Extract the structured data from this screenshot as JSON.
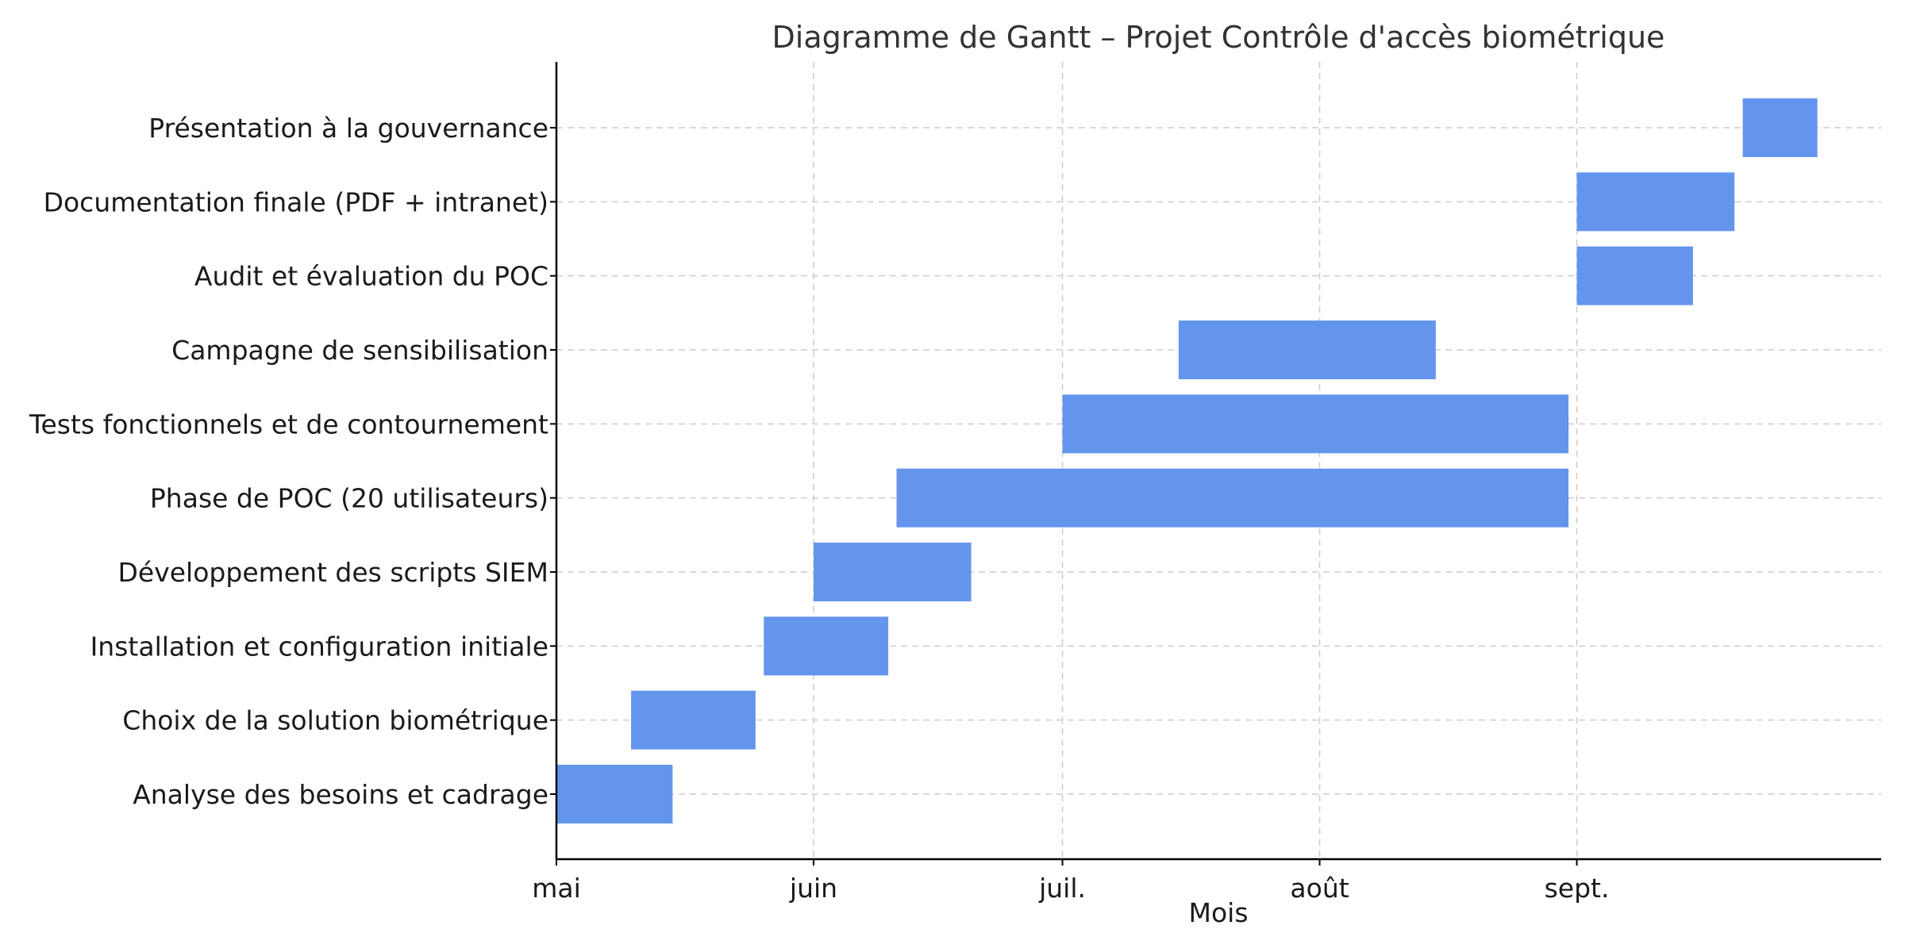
{
  "chart_data": {
    "type": "bar",
    "orientation": "horizontal-gantt",
    "title": "Diagramme de Gantt – Projet Contrôle d'accès biométrique",
    "xlabel": "Mois",
    "ylabel": "",
    "grid": true,
    "bar_color": "#6495ED",
    "xticks": [
      {
        "label": "mai",
        "date": "2024-05-01"
      },
      {
        "label": "juin",
        "date": "2024-06-01"
      },
      {
        "label": "juil.",
        "date": "2024-07-01"
      },
      {
        "label": "août",
        "date": "2024-08-01"
      },
      {
        "label": "sept.",
        "date": "2024-09-01"
      }
    ],
    "xlim": [
      "2024-05-01",
      "2024-09-30"
    ],
    "tasks": [
      {
        "name": "Analyse des besoins et cadrage",
        "start": "2024-05-01",
        "end": "2024-05-15"
      },
      {
        "name": "Choix de la solution biométrique",
        "start": "2024-05-10",
        "end": "2024-05-25"
      },
      {
        "name": "Installation et configuration initiale",
        "start": "2024-05-26",
        "end": "2024-06-10"
      },
      {
        "name": "Développement des scripts SIEM",
        "start": "2024-06-01",
        "end": "2024-06-20"
      },
      {
        "name": "Phase de POC (20 utilisateurs)",
        "start": "2024-06-11",
        "end": "2024-08-31"
      },
      {
        "name": "Tests fonctionnels et de contournement",
        "start": "2024-07-01",
        "end": "2024-08-31"
      },
      {
        "name": "Campagne de sensibilisation",
        "start": "2024-07-15",
        "end": "2024-08-15"
      },
      {
        "name": "Audit et évaluation du POC",
        "start": "2024-09-01",
        "end": "2024-09-15"
      },
      {
        "name": "Documentation finale (PDF + intranet)",
        "start": "2024-09-01",
        "end": "2024-09-20"
      },
      {
        "name": "Présentation à la gouvernance",
        "start": "2024-09-21",
        "end": "2024-09-30"
      }
    ]
  }
}
